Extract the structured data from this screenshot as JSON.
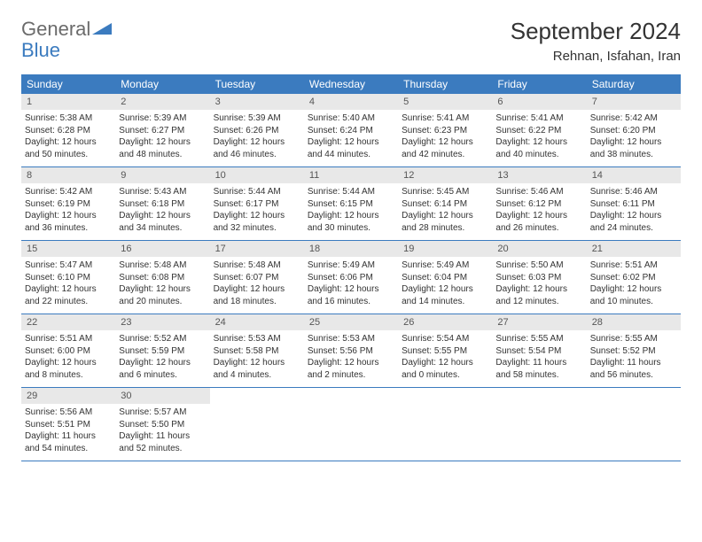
{
  "logo": {
    "text1": "General",
    "text2": "Blue"
  },
  "title": "September 2024",
  "location": "Rehnan, Isfahan, Iran",
  "colors": {
    "header_bg": "#3b7bbf",
    "header_fg": "#ffffff",
    "daynum_bg": "#e8e8e8",
    "daynum_fg": "#555555",
    "text": "#333333",
    "logo_gray": "#6b6b6b",
    "logo_blue": "#3b7bbf",
    "border": "#3b7bbf",
    "page_bg": "#ffffff"
  },
  "font": {
    "family": "Arial, Helvetica, sans-serif",
    "title_size": 26,
    "location_size": 15,
    "header_size": 12,
    "daynum_size": 11,
    "body_size": 10
  },
  "day_labels": [
    "Sunday",
    "Monday",
    "Tuesday",
    "Wednesday",
    "Thursday",
    "Friday",
    "Saturday"
  ],
  "days": [
    {
      "n": "1",
      "sunrise": "5:38 AM",
      "sunset": "6:28 PM",
      "dh": "12",
      "dm": "50"
    },
    {
      "n": "2",
      "sunrise": "5:39 AM",
      "sunset": "6:27 PM",
      "dh": "12",
      "dm": "48"
    },
    {
      "n": "3",
      "sunrise": "5:39 AM",
      "sunset": "6:26 PM",
      "dh": "12",
      "dm": "46"
    },
    {
      "n": "4",
      "sunrise": "5:40 AM",
      "sunset": "6:24 PM",
      "dh": "12",
      "dm": "44"
    },
    {
      "n": "5",
      "sunrise": "5:41 AM",
      "sunset": "6:23 PM",
      "dh": "12",
      "dm": "42"
    },
    {
      "n": "6",
      "sunrise": "5:41 AM",
      "sunset": "6:22 PM",
      "dh": "12",
      "dm": "40"
    },
    {
      "n": "7",
      "sunrise": "5:42 AM",
      "sunset": "6:20 PM",
      "dh": "12",
      "dm": "38"
    },
    {
      "n": "8",
      "sunrise": "5:42 AM",
      "sunset": "6:19 PM",
      "dh": "12",
      "dm": "36"
    },
    {
      "n": "9",
      "sunrise": "5:43 AM",
      "sunset": "6:18 PM",
      "dh": "12",
      "dm": "34"
    },
    {
      "n": "10",
      "sunrise": "5:44 AM",
      "sunset": "6:17 PM",
      "dh": "12",
      "dm": "32"
    },
    {
      "n": "11",
      "sunrise": "5:44 AM",
      "sunset": "6:15 PM",
      "dh": "12",
      "dm": "30"
    },
    {
      "n": "12",
      "sunrise": "5:45 AM",
      "sunset": "6:14 PM",
      "dh": "12",
      "dm": "28"
    },
    {
      "n": "13",
      "sunrise": "5:46 AM",
      "sunset": "6:12 PM",
      "dh": "12",
      "dm": "26"
    },
    {
      "n": "14",
      "sunrise": "5:46 AM",
      "sunset": "6:11 PM",
      "dh": "12",
      "dm": "24"
    },
    {
      "n": "15",
      "sunrise": "5:47 AM",
      "sunset": "6:10 PM",
      "dh": "12",
      "dm": "22"
    },
    {
      "n": "16",
      "sunrise": "5:48 AM",
      "sunset": "6:08 PM",
      "dh": "12",
      "dm": "20"
    },
    {
      "n": "17",
      "sunrise": "5:48 AM",
      "sunset": "6:07 PM",
      "dh": "12",
      "dm": "18"
    },
    {
      "n": "18",
      "sunrise": "5:49 AM",
      "sunset": "6:06 PM",
      "dh": "12",
      "dm": "16"
    },
    {
      "n": "19",
      "sunrise": "5:49 AM",
      "sunset": "6:04 PM",
      "dh": "12",
      "dm": "14"
    },
    {
      "n": "20",
      "sunrise": "5:50 AM",
      "sunset": "6:03 PM",
      "dh": "12",
      "dm": "12"
    },
    {
      "n": "21",
      "sunrise": "5:51 AM",
      "sunset": "6:02 PM",
      "dh": "12",
      "dm": "10"
    },
    {
      "n": "22",
      "sunrise": "5:51 AM",
      "sunset": "6:00 PM",
      "dh": "12",
      "dm": "8"
    },
    {
      "n": "23",
      "sunrise": "5:52 AM",
      "sunset": "5:59 PM",
      "dh": "12",
      "dm": "6"
    },
    {
      "n": "24",
      "sunrise": "5:53 AM",
      "sunset": "5:58 PM",
      "dh": "12",
      "dm": "4"
    },
    {
      "n": "25",
      "sunrise": "5:53 AM",
      "sunset": "5:56 PM",
      "dh": "12",
      "dm": "2"
    },
    {
      "n": "26",
      "sunrise": "5:54 AM",
      "sunset": "5:55 PM",
      "dh": "12",
      "dm": "0"
    },
    {
      "n": "27",
      "sunrise": "5:55 AM",
      "sunset": "5:54 PM",
      "dh": "11",
      "dm": "58"
    },
    {
      "n": "28",
      "sunrise": "5:55 AM",
      "sunset": "5:52 PM",
      "dh": "11",
      "dm": "56"
    },
    {
      "n": "29",
      "sunrise": "5:56 AM",
      "sunset": "5:51 PM",
      "dh": "11",
      "dm": "54"
    },
    {
      "n": "30",
      "sunrise": "5:57 AM",
      "sunset": "5:50 PM",
      "dh": "11",
      "dm": "52"
    }
  ],
  "labels": {
    "sunrise": "Sunrise:",
    "sunset": "Sunset:",
    "daylight": "Daylight:",
    "hours": "hours",
    "and": "and",
    "minutes": "minutes."
  }
}
